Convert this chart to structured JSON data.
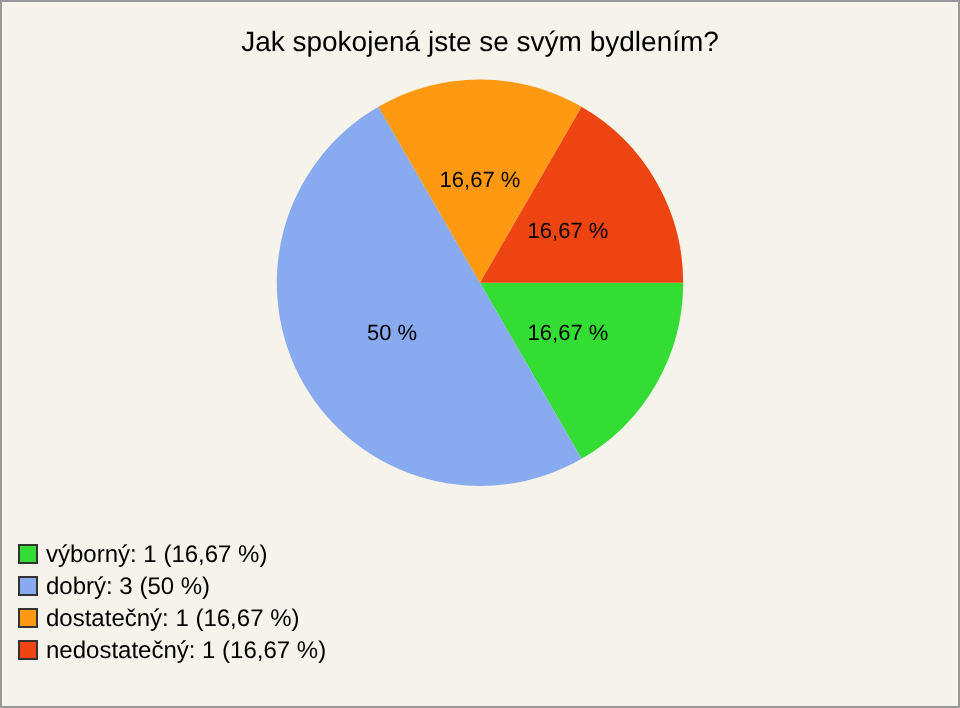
{
  "chart_data": {
    "type": "pie",
    "title": "Jak spokojená jste se svým bydlením?",
    "categories": [
      "výborný: 1 (16,67 %)",
      "dobrý: 3 (50 %)",
      "dostatečný: 1 (16,67 %)",
      "nedostatečný: 1 (16,67 %)"
    ],
    "values": [
      16.67,
      50,
      16.67,
      16.67
    ],
    "value_labels": [
      "16,67 %",
      "50 %",
      "16,67 %",
      "16,67 %"
    ],
    "colors": [
      "#33dd33",
      "#88aaee",
      "#ff9911",
      "#ee4411"
    ],
    "legend": "bottom left"
  }
}
